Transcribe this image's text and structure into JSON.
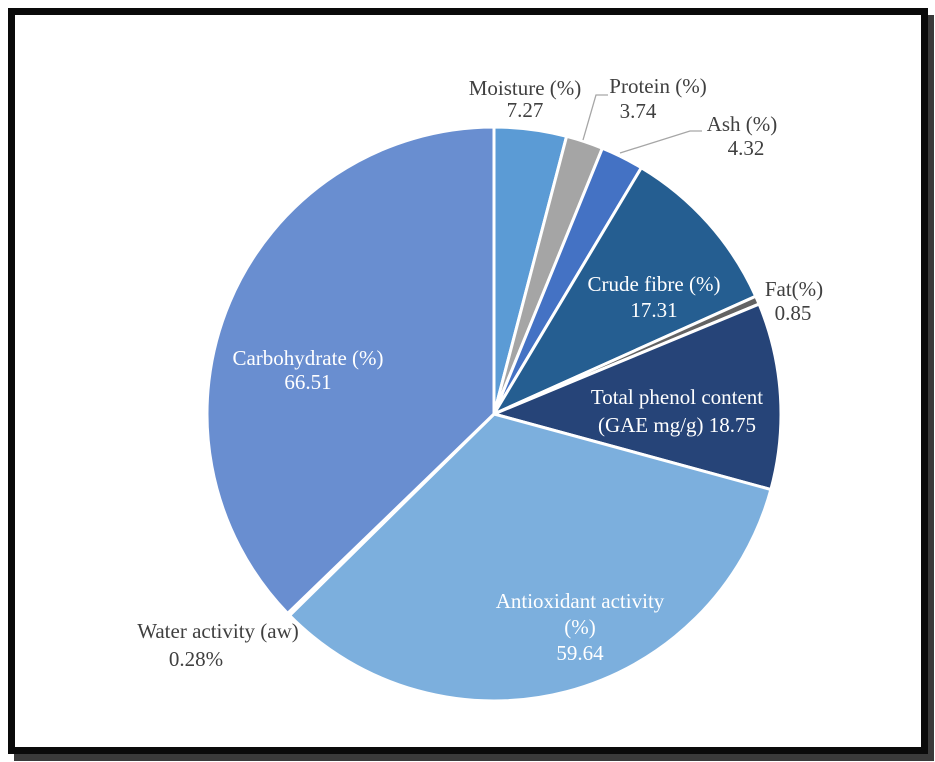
{
  "chart_data": {
    "type": "pie",
    "start_angle_deg": 0,
    "direction": "clockwise",
    "slices": [
      {
        "label": "Moisture (%)",
        "value": 7.27,
        "value_text": "7.27",
        "color": "#5b9bd5"
      },
      {
        "label": "Protein (%)",
        "value": 3.74,
        "value_text": "3.74",
        "color": "#a5a5a5"
      },
      {
        "label": "Ash (%)",
        "value": 4.32,
        "value_text": "4.32",
        "color": "#4472c4"
      },
      {
        "label": "Crude fibre (%)",
        "value": 17.31,
        "value_text": "17.31",
        "color": "#255e91"
      },
      {
        "label": "Fat(%)",
        "value": 0.85,
        "value_text": "0.85",
        "color": "#636363"
      },
      {
        "label": "Total phenol content (GAE mg/g)",
        "value": 18.75,
        "value_text": "18.75",
        "color": "#264478"
      },
      {
        "label": "Antioxidant activity (%)",
        "value": 59.64,
        "value_text": "59.64",
        "color": "#7cafdd"
      },
      {
        "label": "Water activity (aw)",
        "value": 0.28,
        "value_text": "0.28%",
        "color": "#8faadc"
      },
      {
        "label": "Carbohydrate (%)",
        "value": 66.51,
        "value_text": "66.51",
        "color": "#698ed0"
      }
    ]
  }
}
